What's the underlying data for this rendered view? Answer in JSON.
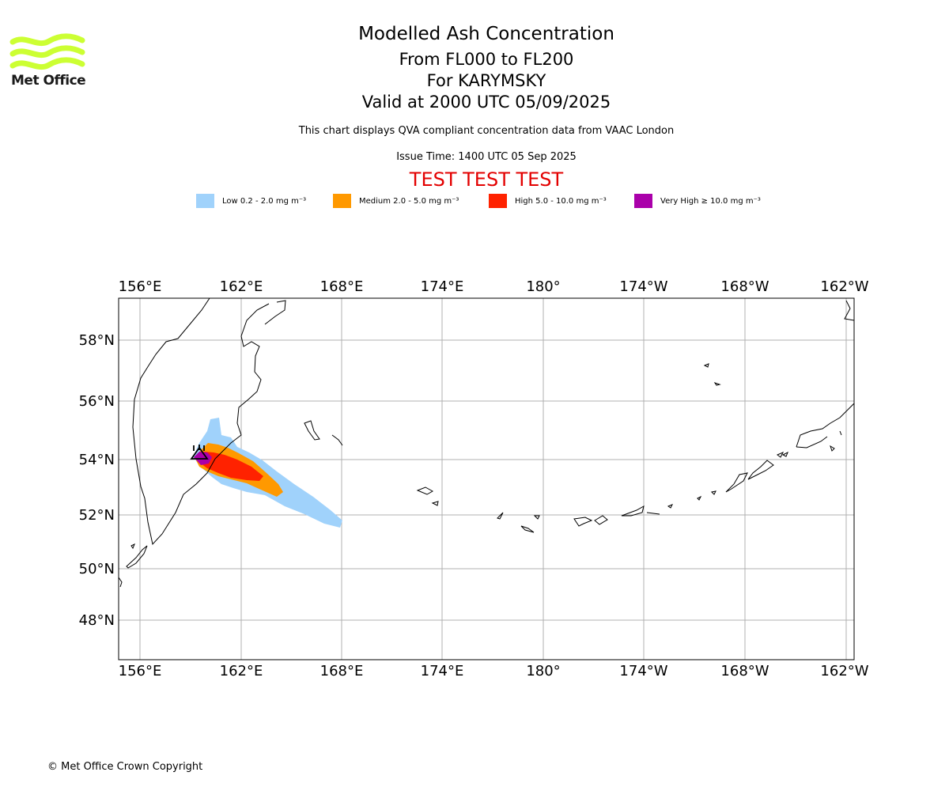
{
  "logo": {
    "text": "Met Office",
    "color": "#ccff33"
  },
  "header": {
    "title": "Modelled Ash Concentration",
    "levels": "From FL000 to FL200",
    "volcano": "For KARYMSKY",
    "valid": "Valid at 2000 UTC 05/09/2025",
    "info": "This chart displays QVA compliant concentration data from VAAC London",
    "issue": "Issue Time: 1400 UTC 05 Sep 2025",
    "test_banner": "TEST TEST TEST"
  },
  "legend": [
    {
      "label": "Low 0.2 - 2.0 mg m⁻³",
      "color": "#a0d2fb"
    },
    {
      "label": "Medium 2.0 - 5.0 mg m⁻³",
      "color": "#ff9900"
    },
    {
      "label": "High 5.0 - 10.0 mg m⁻³",
      "color": "#ff2200"
    },
    {
      "label": "Very High ≥ 10.0 mg m⁻³",
      "color": "#aa00aa"
    }
  ],
  "map": {
    "lon_ticks": [
      "156°E",
      "162°E",
      "168°E",
      "174°E",
      "180°",
      "174°W",
      "168°W",
      "162°W"
    ],
    "lat_ticks": [
      "58°N",
      "56°N",
      "54°N",
      "52°N",
      "50°N",
      "48°N"
    ],
    "volcano_marker": "Karymsky volcano",
    "grid": true
  },
  "footer": {
    "copyright": "© Met Office Crown Copyright"
  }
}
